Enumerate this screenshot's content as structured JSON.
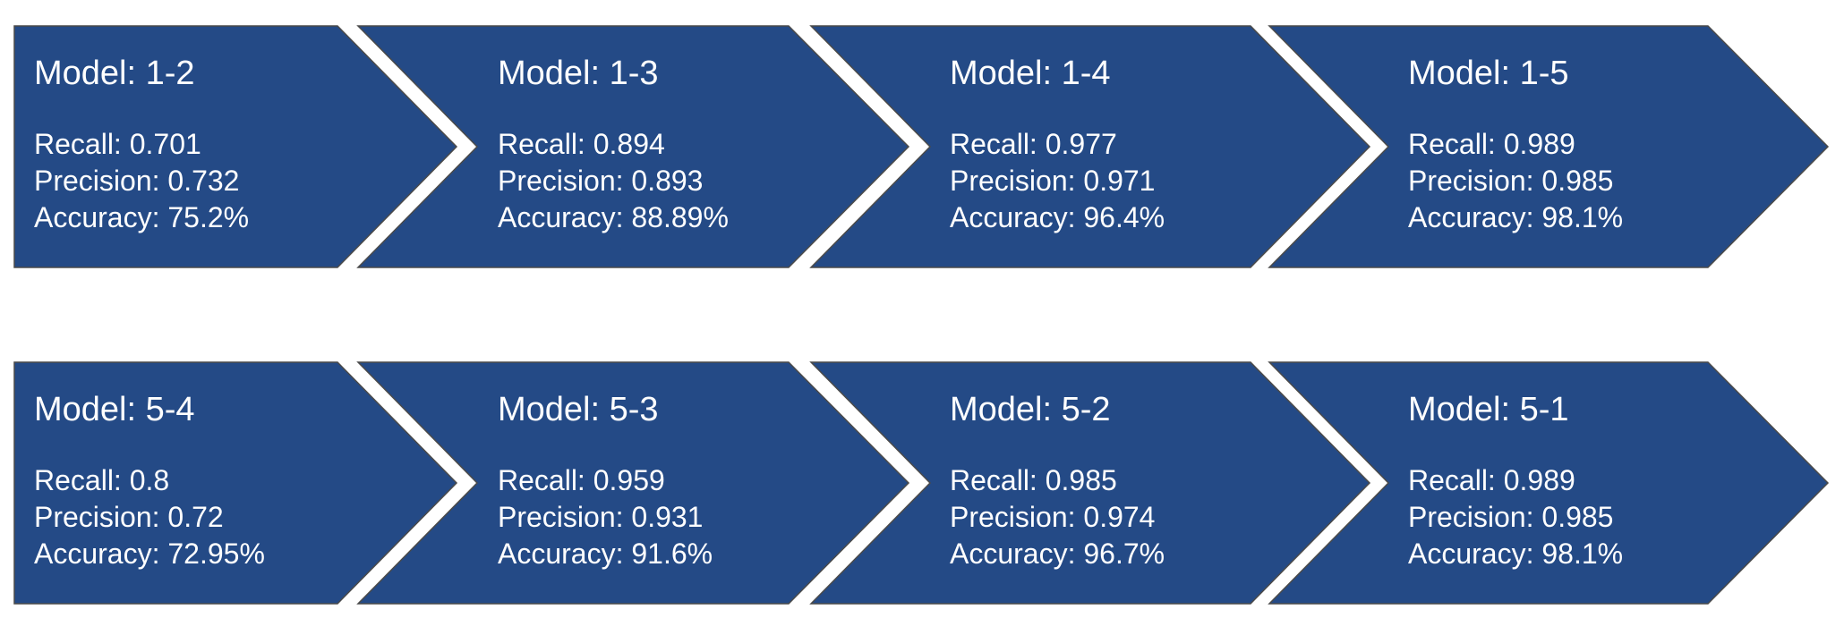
{
  "colors": {
    "chevron_fill": "#244A86",
    "chevron_stroke": "#4A4A4A",
    "text": "#FFFFFF",
    "background": "#FFFFFF"
  },
  "rows": [
    {
      "steps": [
        {
          "title": "Model: 1-2",
          "recall": "Recall: 0.701",
          "precision": "Precision: 0.732",
          "accuracy": "Accuracy: 75.2%"
        },
        {
          "title": "Model: 1-3",
          "recall": "Recall: 0.894",
          "precision": "Precision: 0.893",
          "accuracy": "Accuracy: 88.89%"
        },
        {
          "title": "Model: 1-4",
          "recall": "Recall: 0.977",
          "precision": "Precision: 0.971",
          "accuracy": "Accuracy: 96.4%"
        },
        {
          "title": "Model: 1-5",
          "recall": "Recall: 0.989",
          "precision": "Precision: 0.985",
          "accuracy": "Accuracy: 98.1%"
        }
      ]
    },
    {
      "steps": [
        {
          "title": "Model: 5-4",
          "recall": "Recall: 0.8",
          "precision": "Precision: 0.72",
          "accuracy": "Accuracy: 72.95%"
        },
        {
          "title": "Model: 5-3",
          "recall": "Recall: 0.959",
          "precision": "Precision: 0.931",
          "accuracy": "Accuracy: 91.6%"
        },
        {
          "title": "Model: 5-2",
          "recall": "Recall: 0.985",
          "precision": "Precision: 0.974",
          "accuracy": "Accuracy: 96.7%"
        },
        {
          "title": "Model: 5-1",
          "recall": "Recall: 0.989",
          "precision": "Precision: 0.985",
          "accuracy": "Accuracy: 98.1%"
        }
      ]
    }
  ]
}
